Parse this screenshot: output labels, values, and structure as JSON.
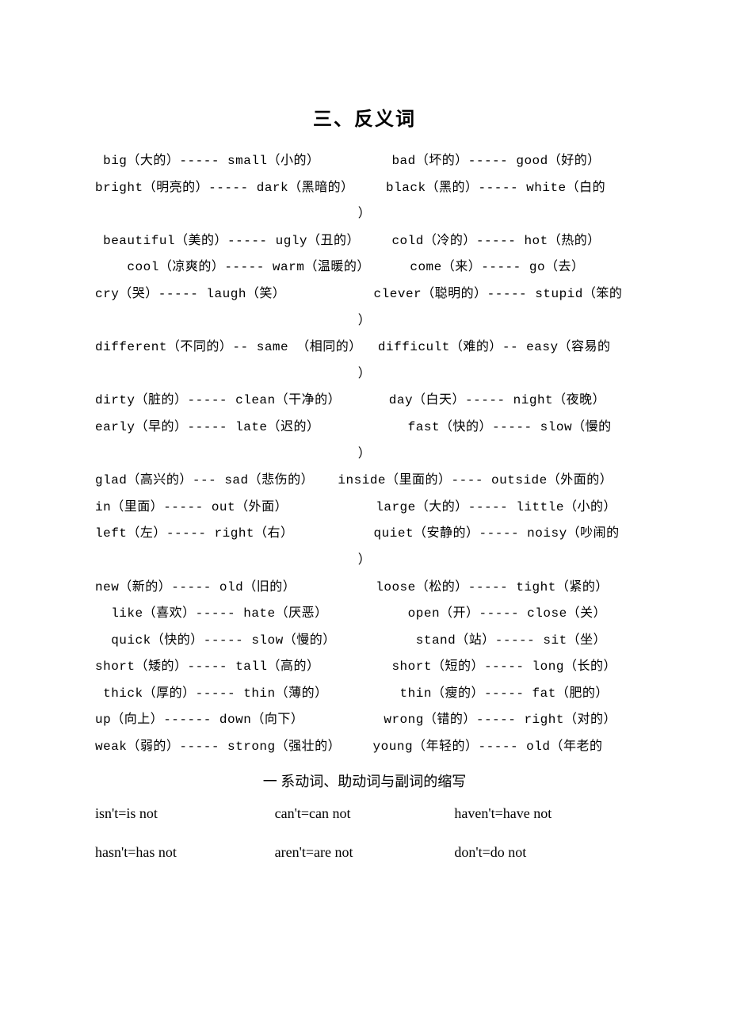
{
  "heading": "三、反义词",
  "subheading": "一  系动词、助动词与副词的缩写",
  "lines": [
    {
      "t": "line",
      "text": " big（大的）----- small（小的）         bad（坏的）----- good（好的）"
    },
    {
      "t": "line",
      "text": "bright（明亮的）----- dark（黑暗的）    black（黑的）----- white（白的"
    },
    {
      "t": "paren",
      "text": "）"
    },
    {
      "t": "line",
      "text": " beautiful（美的）----- ugly（丑的）    cold（冷的）----- hot（热的）"
    },
    {
      "t": "line",
      "text": "    cool（凉爽的）----- warm（温暖的）     come（来）----- go（去）"
    },
    {
      "t": "line",
      "text": "cry（哭）----- laugh（笑）           clever（聪明的）----- stupid（笨的"
    },
    {
      "t": "paren",
      "text": "）"
    },
    {
      "t": "line",
      "text": "different（不同的）-- same （相同的）  difficult（难的）-- easy（容易的"
    },
    {
      "t": "paren",
      "text": "）"
    },
    {
      "t": "line",
      "text": "dirty（脏的）----- clean（干净的）      day（白天）----- night（夜晚）"
    },
    {
      "t": "line",
      "text": "early（早的）----- late（迟的）           fast（快的）----- slow（慢的"
    },
    {
      "t": "paren",
      "text": "）"
    },
    {
      "t": "line",
      "text": "glad（高兴的）--- sad（悲伤的）   inside（里面的）---- outside（外面的）"
    },
    {
      "t": "line",
      "text": "in（里面）----- out（外面）           large（大的）----- little（小的）"
    },
    {
      "t": "line",
      "text": "left（左）----- right（右）          quiet（安静的）----- noisy（吵闹的"
    },
    {
      "t": "paren",
      "text": "）"
    },
    {
      "t": "line",
      "text": "new（新的）----- old（旧的）          loose（松的）----- tight（紧的）"
    },
    {
      "t": "line",
      "text": "  like（喜欢）----- hate（厌恶）          open（开）----- close（关）"
    },
    {
      "t": "line",
      "text": "  quick（快的）----- slow（慢的）          stand（站）----- sit（坐）"
    },
    {
      "t": "line",
      "text": "short（矮的）----- tall（高的）         short（短的）----- long（长的）"
    },
    {
      "t": "line",
      "text": " thick（厚的）----- thin（薄的）         thin（瘦的）----- fat（肥的）"
    },
    {
      "t": "line",
      "text": "up（向上）------ down（向下）          wrong（错的）----- right（对的）"
    },
    {
      "t": "line",
      "text": "weak（弱的）----- strong（强壮的）    young（年轻的）----- old（年老的"
    }
  ],
  "contractions": [
    [
      "isn't=is not",
      "can't=can not",
      "haven't=have not"
    ],
    [
      "hasn't=has not",
      "aren't=are not",
      "don't=do not"
    ]
  ],
  "colors": {
    "text": "#000000",
    "background": "#ffffff"
  },
  "typography": {
    "body_font": "SimSun / Courier-like monospace",
    "heading_fontsize": 24,
    "body_fontsize": 16,
    "contraction_fontsize": 18,
    "line_height": 2.1
  }
}
